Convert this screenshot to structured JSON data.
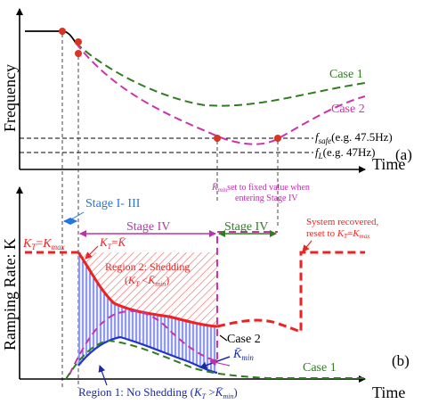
{
  "chart_data": [
    {
      "type": "line",
      "panel": "(a)",
      "xlabel": "Time",
      "ylabel": "Frequency",
      "series": [
        {
          "name": "Case 1",
          "color": "#2e7d1e",
          "style": "dashed"
        },
        {
          "name": "Case 2",
          "color": "#cc33aa",
          "style": "dashed"
        }
      ],
      "initial": {
        "color": "#000000",
        "style": "solid"
      },
      "reference_lines": {
        "f_safe": "(e.g. 47.5Hz)",
        "f_L": "(e.g. 47Hz)"
      },
      "markers": {
        "color": "#dd3322",
        "count": 5
      },
      "grid": false
    },
    {
      "type": "line",
      "panel": "(b)",
      "xlabel": "Time",
      "ylabel": "Ramping Rate: K",
      "series": [
        {
          "name": "Case 1",
          "color": "#2e7d1e",
          "style": "dashed"
        },
        {
          "name": "Case 2",
          "color": "#cc33aa",
          "style": "dashed"
        },
        {
          "name": "K_T",
          "color": "#ee2222",
          "style": "dashed, thick"
        },
        {
          "name": "K̄_min",
          "color": "#2233cc",
          "style": "solid"
        }
      ],
      "annotations": {
        "stages": [
          "Stage I- III",
          "Stage IV",
          "Stage IV"
        ],
        "kmin_note": [
          "set to fixed value when",
          "entering Stage IV"
        ],
        "recovered": [
          "System recovered,",
          "reset to "
        ],
        "region2": [
          "Region 2: Shedding",
          "("
        ],
        "region1": [
          "Region 1: No Shedding  ("
        ]
      },
      "grid": false
    }
  ]
}
